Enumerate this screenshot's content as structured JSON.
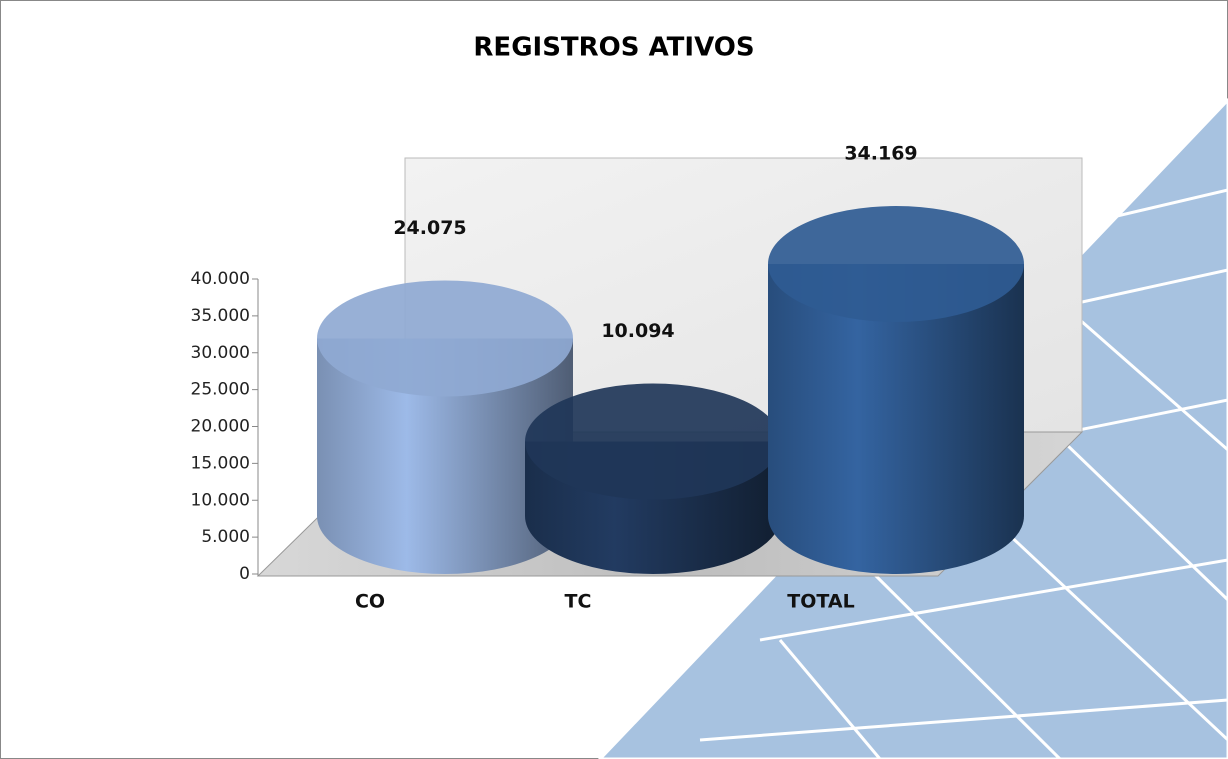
{
  "chart_data": {
    "type": "bar",
    "title": "REGISTROS ATIVOS",
    "categories": [
      "CO",
      "TC",
      "TOTAL"
    ],
    "values": [
      24075,
      10094,
      34169
    ],
    "value_labels": [
      "24.075",
      "10.094",
      "34.169"
    ],
    "colors": [
      "#8fa9d3",
      "#1f3658",
      "#2f5b92"
    ],
    "ylim": [
      0,
      40000
    ],
    "yticks": [
      0,
      {
        "value": 5000,
        "label": "5.000"
      },
      {
        "value": 10000,
        "label": "10.000"
      },
      {
        "value": 15000,
        "label": "15.000"
      },
      {
        "value": 20000,
        "label": "20.000"
      },
      {
        "value": 25000,
        "label": "25.000"
      },
      {
        "value": 30000,
        "label": "30.000"
      },
      {
        "value": 35000,
        "label": "35.000"
      },
      {
        "value": 40000,
        "label": "40.000"
      }
    ]
  }
}
